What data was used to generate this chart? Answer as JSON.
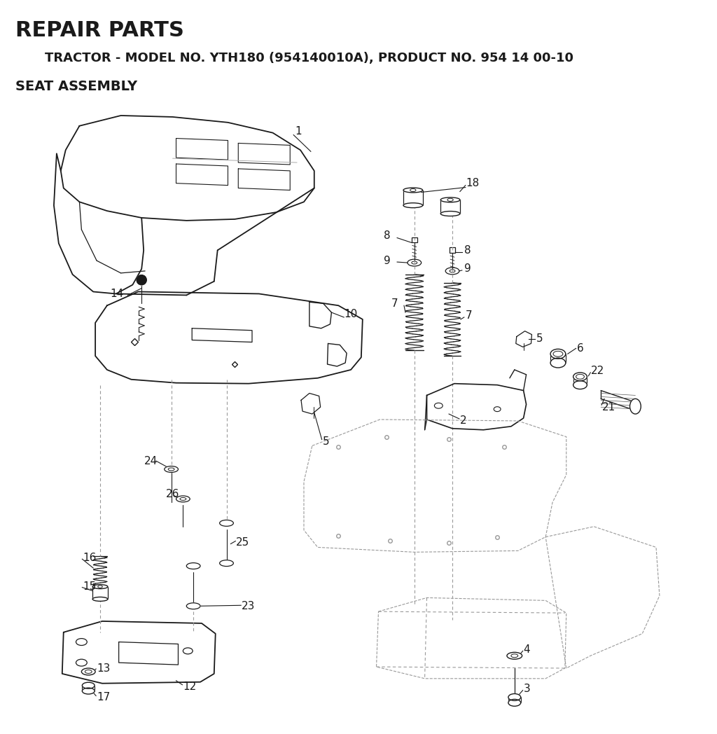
{
  "title": "REPAIR PARTS",
  "subtitle": "TRACTOR - MODEL NO. YTH180 (954140010A), PRODUCT NO. 954 14 00-10",
  "section": "SEAT ASSEMBLY",
  "bg_color": "#ffffff",
  "line_color": "#1a1a1a",
  "dash_color": "#999999",
  "title_fontsize": 22,
  "subtitle_fontsize": 13,
  "section_fontsize": 14,
  "label_fontsize": 11
}
